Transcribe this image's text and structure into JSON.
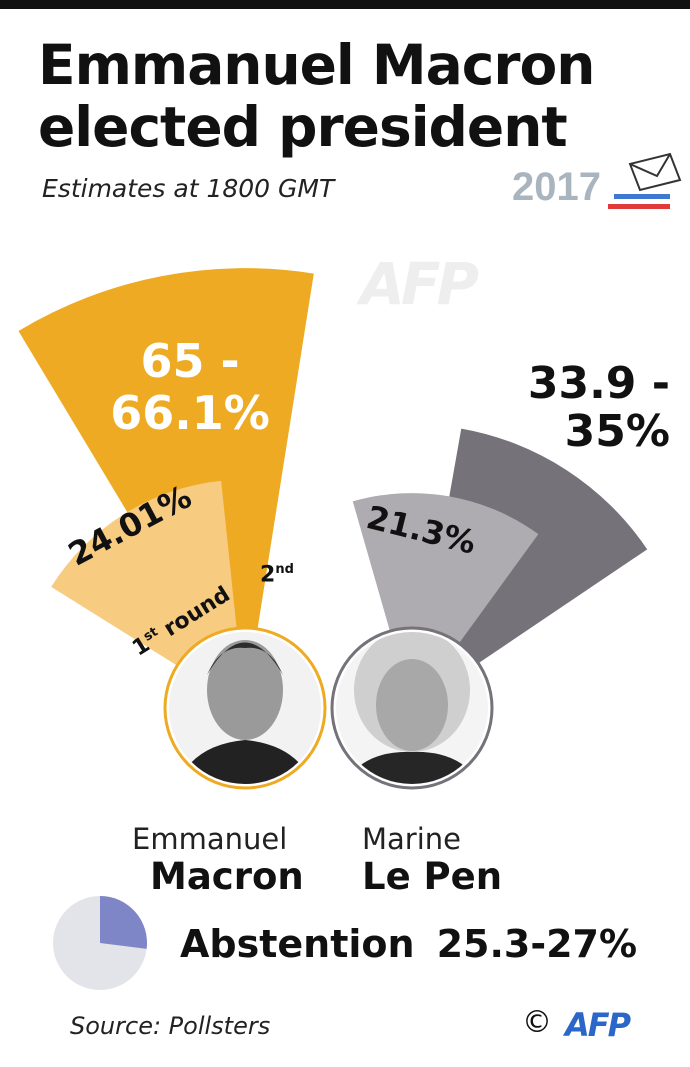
{
  "header": {
    "title_line1": "Emmanuel Macron",
    "title_line2": "elected president",
    "subtitle": "Estimates at 1800 GMT",
    "year_logo": "2017"
  },
  "watermark": "AFP",
  "chart_data": {
    "type": "radial-bar",
    "title": "Emmanuel Macron elected president",
    "subtitle": "Estimates at 1800 GMT",
    "candidates": [
      {
        "first_name": "Emmanuel",
        "last_name": "Macron",
        "color_round2": "#eeaa22",
        "color_round1": "#f7cb80",
        "round1": {
          "value": 24.01,
          "label": "24.01%"
        },
        "round2": {
          "value_low": 65,
          "value_high": 66.1,
          "label_line1": "65 -",
          "label_line2": "66.1%"
        }
      },
      {
        "first_name": "Marine",
        "last_name": "Le Pen",
        "color_round2": "#75727a",
        "color_round1": "#aeabb1",
        "round1": {
          "value": 21.3,
          "label": "21.3%"
        },
        "round2": {
          "value_low": 33.9,
          "value_high": 35,
          "label_line1": "33.9 -",
          "label_line2": "35%"
        }
      }
    ],
    "round_labels": {
      "round1_num": "1",
      "round1_sup": "st",
      "round1_word": "round",
      "round2_num": "2",
      "round2_sup": "nd"
    },
    "abstention": {
      "label": "Abstention",
      "value_low": 25.3,
      "value_high": 27,
      "text": "25.3-27%",
      "color": "#7f86c8",
      "rest_color": "#e3e3ea"
    }
  },
  "footer": {
    "source": "Source: Pollsters",
    "copyright": "©",
    "agency": "AFP"
  }
}
